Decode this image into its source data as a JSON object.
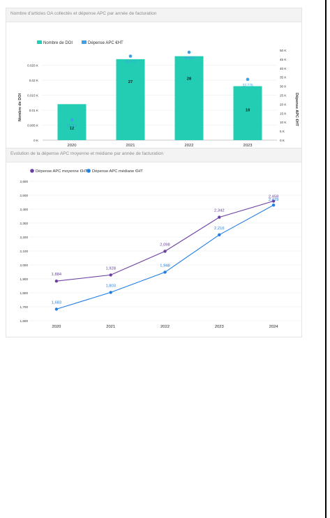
{
  "colors": {
    "bar": "#22cdb3",
    "apc_dot": "#3fa0e6",
    "mean_line": "#6a3fa3",
    "median_line": "#1f7ee6",
    "grid": "#e8e8e8",
    "axis_text": "#333333"
  },
  "chart_data": [
    {
      "type": "bar",
      "title": "Nombre d'articles OA collectés et dépense APC par année de facturation",
      "categories": [
        "2020",
        "2021",
        "2022",
        "2023"
      ],
      "series": [
        {
          "name": "Nombre de DOI",
          "axis": "left",
          "kind": "bar",
          "values": [
            12,
            27,
            28,
            18
          ]
        },
        {
          "name": "Dépense APC €HT",
          "axis": "right",
          "kind": "point",
          "values": [
            11254,
            46702,
            48853,
            33776
          ],
          "labels": [
            "11 254",
            "46 702",
            "48 853",
            "33 776"
          ]
        }
      ],
      "ylabel": "Nombre de DOI",
      "ylabel_right": "Dépense APC €HT",
      "ylim": [
        0,
        30
      ],
      "ylim_right": [
        0,
        50000
      ],
      "yticks_left": [
        "0 K",
        "0.005 K",
        "0.01 K",
        "0.015 K",
        "0.02 K",
        "0.025 K"
      ],
      "yticks_right": [
        "0 K",
        "5 K",
        "10 K",
        "15 K",
        "20 K",
        "25 K",
        "30 K",
        "35 K",
        "40 K",
        "45 K",
        "50 K"
      ],
      "legend": "top-left"
    },
    {
      "type": "line",
      "title": "Evolution de la dépense APC moyenne et médiane par année de facturation",
      "categories": [
        "2020",
        "2021",
        "2022",
        "2023",
        "2024"
      ],
      "series": [
        {
          "name": "Dépense APC moyenne €HT",
          "values": [
            1884,
            1928,
            2098,
            2342,
            2458
          ],
          "labels": [
            "1,884",
            "1,928",
            "2,098",
            "2,342",
            "2,458"
          ]
        },
        {
          "name": "Dépense APC médiane €HT",
          "values": [
            1683,
            1803,
            1948,
            2216,
            2429
          ],
          "labels": [
            "1,683",
            "1,803",
            "1,948",
            "2,216",
            "2,429"
          ]
        }
      ],
      "ylim": [
        1600,
        2600
      ],
      "yticks": [
        "1,600",
        "1,700",
        "1,800",
        "1,900",
        "2,000",
        "2,100",
        "2,200",
        "2,300",
        "2,400",
        "2,500",
        "2,600"
      ],
      "legend": "top-left"
    }
  ]
}
